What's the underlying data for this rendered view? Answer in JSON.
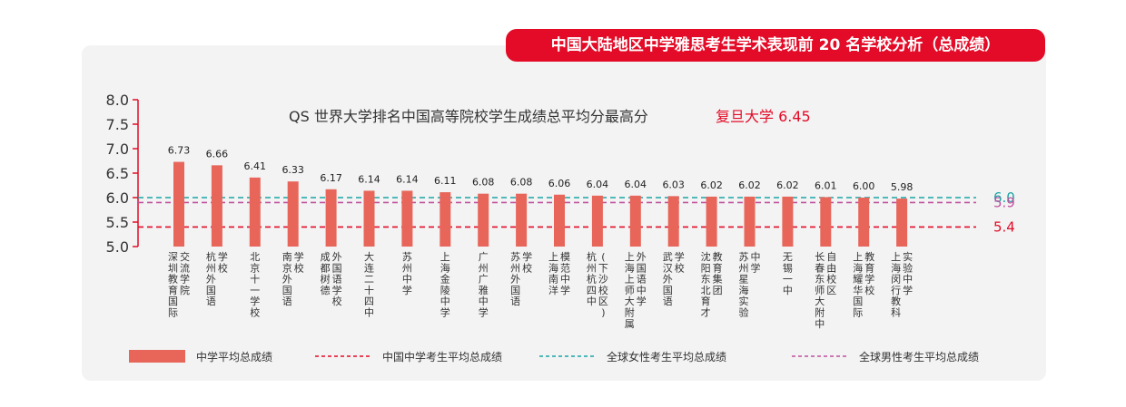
{
  "banner": "中国大陆地区中学雅思考生学术表现前 20 名学校分析（总成绩）",
  "chart_data": {
    "type": "bar",
    "subtitle": "QS 世界大学排名中国高等院校学生成绩总平均分最高分",
    "subtitle_highlight": "复旦大学 6.45",
    "ylim": [
      5.0,
      8.0
    ],
    "yticks": [
      "8.0",
      "7.5",
      "7.0",
      "6.5",
      "6.0",
      "5.5",
      "5.0"
    ],
    "categories": [
      [
        "深圳教育国际",
        "交流学院"
      ],
      [
        "杭州外国语",
        "学校"
      ],
      [
        "北京十一学校"
      ],
      [
        "南京外国语",
        "学校"
      ],
      [
        "成都树德",
        "外国语学校"
      ],
      [
        "大连二十四中"
      ],
      [
        "苏州中学"
      ],
      [
        "上海金陵中学"
      ],
      [
        "广州广雅中学"
      ],
      [
        "苏州外国语",
        "学校"
      ],
      [
        "上海南洋",
        "模范中学"
      ],
      [
        "杭州杭四中",
        "(下沙校区)"
      ],
      [
        "上海上师大附属",
        "外国语中学"
      ],
      [
        "武汉外国语",
        "学校"
      ],
      [
        "沈阳东北育才",
        "教育集团"
      ],
      [
        "苏州星海实验",
        "中学"
      ],
      [
        "无锡一中"
      ],
      [
        "长春东师大附中",
        "自由校区"
      ],
      [
        "上海耀华国际",
        "教育学校"
      ],
      [
        "上海闵行教科",
        "实验中学"
      ]
    ],
    "values": [
      6.73,
      6.66,
      6.41,
      6.33,
      6.17,
      6.14,
      6.14,
      6.11,
      6.08,
      6.08,
      6.06,
      6.04,
      6.04,
      6.03,
      6.02,
      6.02,
      6.02,
      6.01,
      6.0,
      5.98
    ],
    "value_labels": [
      "6.73",
      "6.66",
      "6.41",
      "6.33",
      "6.17",
      "6.14",
      "6.14",
      "6.11",
      "6.08",
      "6.08",
      "6.06",
      "6.04",
      "6.04",
      "6.03",
      "6.02",
      "6.02",
      "6.02",
      "6.01",
      "6.00",
      "5.98"
    ],
    "reference_lines": [
      {
        "value": 6.0,
        "label": "6.0",
        "color": "#1aa4a4"
      },
      {
        "value": 5.9,
        "label": "5.9",
        "color": "#c0509e"
      },
      {
        "value": 5.4,
        "label": "5.4",
        "color": "#e30b27"
      }
    ],
    "legend": [
      {
        "label": "中学平均总成绩",
        "kind": "bar",
        "color": "#e8655a"
      },
      {
        "label": "中国中学考生平均总成绩",
        "kind": "dash",
        "color": "#e30b27"
      },
      {
        "label": "全球女性考生平均总成绩",
        "kind": "dash",
        "color": "#1aa4a4"
      },
      {
        "label": "全球男性考生平均总成绩",
        "kind": "dash",
        "color": "#c0509e"
      }
    ],
    "bar_color": "#e8655a",
    "axis_color": "#e30b27"
  }
}
